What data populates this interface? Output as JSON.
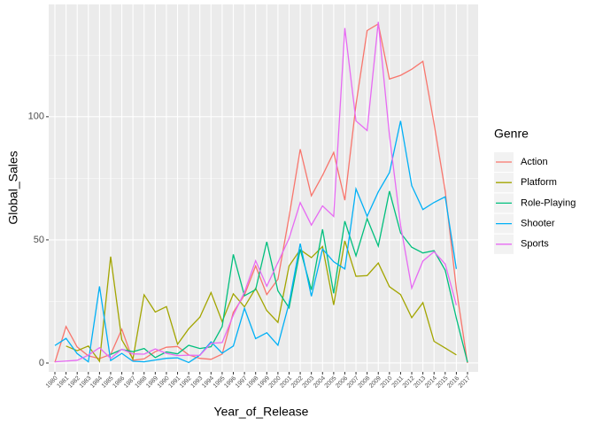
{
  "chart_data": {
    "type": "line",
    "x_label": "Year_of_Release",
    "y_label": "Global_Sales",
    "legend_title": "Genre",
    "legend": "right",
    "categories": [
      "1980",
      "1981",
      "1982",
      "1983",
      "1984",
      "1985",
      "1986",
      "1987",
      "1988",
      "1989",
      "1990",
      "1991",
      "1992",
      "1993",
      "1994",
      "1995",
      "1996",
      "1997",
      "1998",
      "1999",
      "2000",
      "2001",
      "2002",
      "2003",
      "2004",
      "2005",
      "2006",
      "2007",
      "2008",
      "2009",
      "2010",
      "2011",
      "2012",
      "2013",
      "2014",
      "2015",
      "2016",
      "2017"
    ],
    "series": [
      {
        "name": "Action",
        "color": "#F8766D",
        "values": [
          0.3,
          14.8,
          6.5,
          2.9,
          1.8,
          3.5,
          13.7,
          1.1,
          1.7,
          4.6,
          6.4,
          6.7,
          3.3,
          1.9,
          1.5,
          3.6,
          20.6,
          27.6,
          39.4,
          27.8,
          34,
          59.4,
          86.8,
          67.9,
          76.2,
          85.5,
          66.1,
          104.9,
          135,
          137.7,
          115.3,
          116.8,
          119.3,
          122.5,
          97.2,
          69.8,
          30.1,
          0
        ]
      },
      {
        "name": "Platform",
        "color": "#A3A500",
        "values": [
          null,
          6.9,
          5.0,
          6.9,
          0.7,
          43.2,
          9.4,
          1.7,
          27.7,
          20.7,
          22.9,
          7.6,
          13.9,
          18.6,
          28.6,
          16.8,
          28.1,
          22.8,
          30.3,
          21.3,
          16.5,
          39.4,
          46,
          42.8,
          47.3,
          23.6,
          49.6,
          35.2,
          35.5,
          40.6,
          31,
          27.8,
          18.4,
          24.5,
          8.8,
          6.1,
          3.3,
          null
        ]
      },
      {
        "name": "Role-Playing",
        "color": "#00BF7D",
        "values": [
          null,
          null,
          null,
          null,
          null,
          3.5,
          5.5,
          4.6,
          5.9,
          2.2,
          4.5,
          3.7,
          7.2,
          5.9,
          6.6,
          14.8,
          44.1,
          27.3,
          29.8,
          49.2,
          29.3,
          22.4,
          46.1,
          29.7,
          54.3,
          28.3,
          57.6,
          43.5,
          58.6,
          47.5,
          69.8,
          52.8,
          47,
          44.7,
          45.6,
          37.7,
          18.2,
          0.3
        ]
      },
      {
        "name": "Shooter",
        "color": "#00B0F6",
        "values": [
          7.1,
          10,
          3.8,
          0.5,
          31.1,
          1,
          3.9,
          0.7,
          0.5,
          1.2,
          1.9,
          2.1,
          0.2,
          3.2,
          8.6,
          4,
          6.9,
          22.2,
          9.9,
          12.3,
          7.2,
          24.3,
          48.5,
          27.1,
          46.3,
          41.1,
          38.2,
          70.7,
          59.6,
          69.5,
          77.3,
          98.3,
          72,
          62.3,
          65.2,
          67.5,
          38.2,
          null
        ]
      },
      {
        "name": "Sports",
        "color": "#E76BF3",
        "values": [
          0.5,
          0.8,
          1.1,
          3.2,
          6.2,
          1.9,
          5.6,
          3.7,
          3.6,
          5.7,
          3.9,
          3,
          3.2,
          3.1,
          8,
          8.3,
          19.4,
          28.8,
          41.5,
          31.2,
          40.8,
          50.6,
          65.1,
          56,
          63.8,
          59.5,
          136,
          98.3,
          94.4,
          138.5,
          92.5,
          55.9,
          30.4,
          41.4,
          45.2,
          40.2,
          23.5,
          null
        ]
      }
    ],
    "ylim": [
      -3.6,
      145.6
    ],
    "yticks": [
      0,
      50,
      100
    ],
    "minor_yticks": [
      25,
      75,
      125
    ],
    "grid": true
  }
}
